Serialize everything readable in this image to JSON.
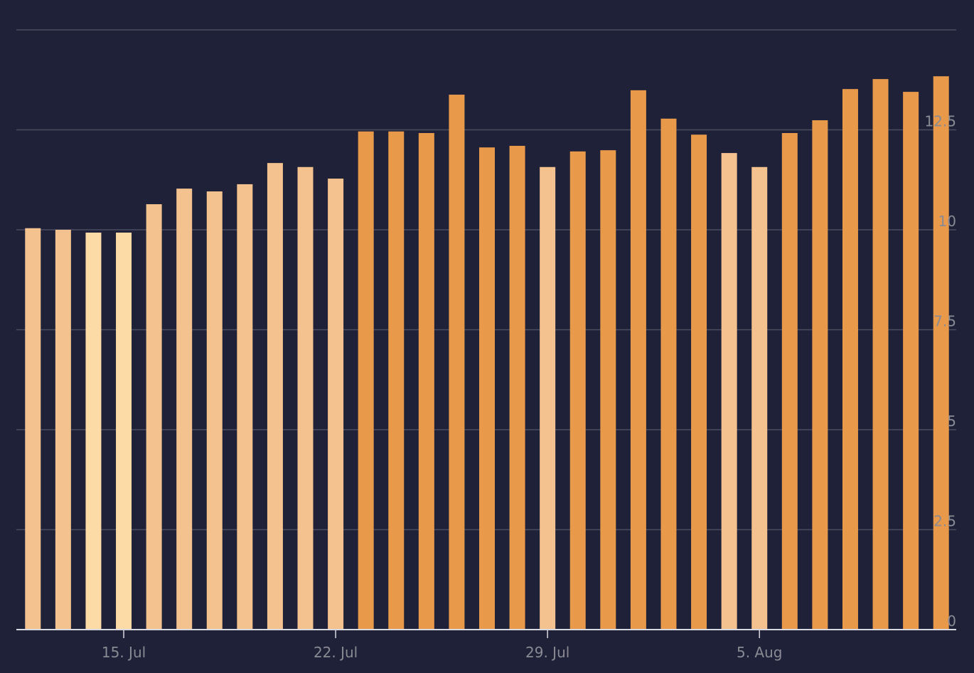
{
  "chart_data": {
    "type": "bar",
    "categories": [
      null,
      null,
      null,
      "15. Jul",
      null,
      null,
      null,
      null,
      null,
      null,
      "22. Jul",
      null,
      null,
      null,
      null,
      null,
      null,
      "29. Jul",
      null,
      null,
      null,
      null,
      null,
      null,
      "5. Aug",
      null,
      null,
      null,
      null,
      null,
      null
    ],
    "values": [
      10.04,
      10.0,
      9.93,
      9.93,
      10.64,
      11.03,
      10.96,
      11.14,
      11.67,
      11.57,
      11.28,
      12.46,
      12.46,
      12.42,
      13.38,
      12.06,
      12.1,
      11.57,
      11.96,
      11.99,
      13.49,
      12.78,
      12.38,
      11.92,
      11.57,
      12.42,
      12.74,
      13.52,
      13.77,
      13.45,
      13.84
    ],
    "colors": [
      "#f3c28e",
      "#f3c28e",
      "#fcdba6",
      "#fcdba6",
      "#f3c28e",
      "#f3c28e",
      "#f3c28e",
      "#f3c28e",
      "#f3c28e",
      "#f3c28e",
      "#f3c28e",
      "#e8994a",
      "#e8994a",
      "#e8994a",
      "#e8994a",
      "#e8994a",
      "#e8994a",
      "#f3c28e",
      "#e8994a",
      "#e8994a",
      "#e8994a",
      "#e8994a",
      "#e8994a",
      "#f3c28e",
      "#f3c28e",
      "#e8994a",
      "#e8994a",
      "#e8994a",
      "#e8994a",
      "#e8994a",
      "#e8994a"
    ],
    "ylim": [
      0,
      15
    ],
    "yticks": [
      0,
      2.5,
      5,
      7.5,
      10,
      12.5
    ],
    "grid": true
  }
}
